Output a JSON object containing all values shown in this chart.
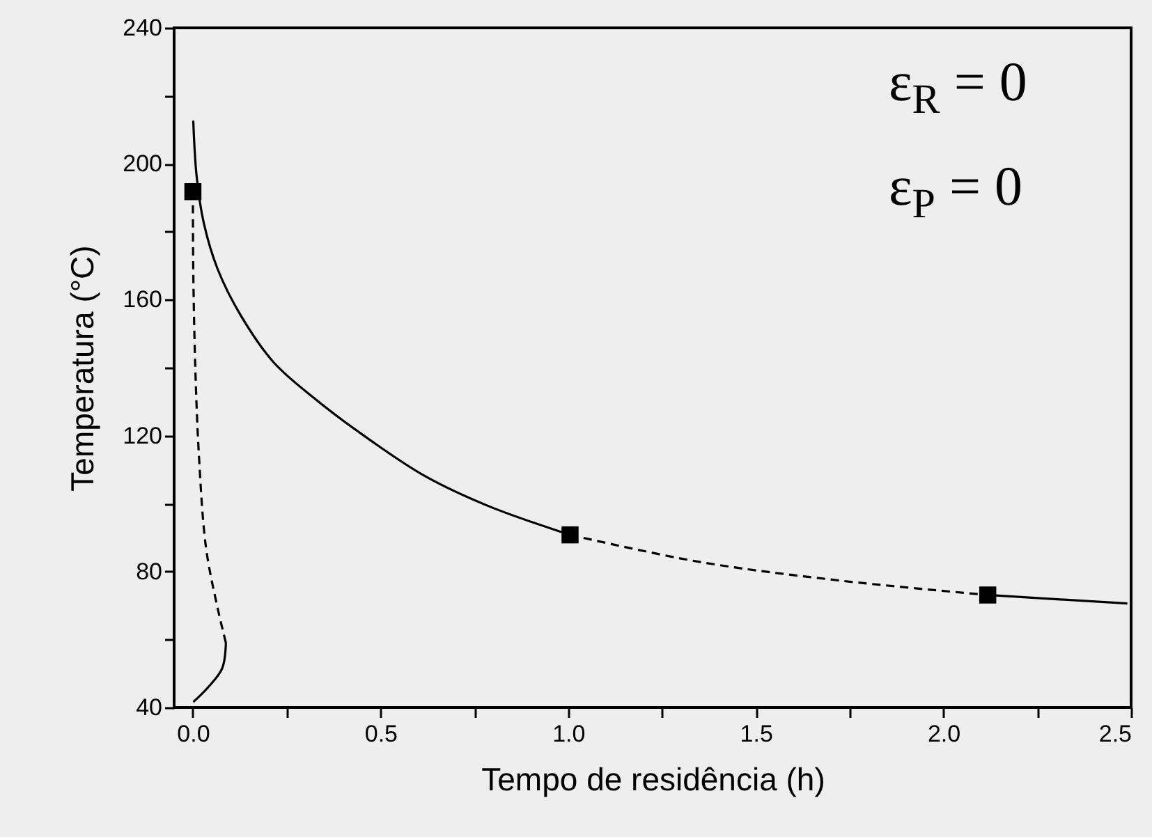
{
  "chart_data": {
    "type": "line",
    "xlabel": "Tempo de residência (h)",
    "ylabel": "Temperatura (°C)",
    "xlim": [
      -0.05,
      2.5
    ],
    "ylim": [
      40,
      240
    ],
    "xticks": [
      {
        "value": 0,
        "label": "0.0"
      },
      {
        "value": 0.25,
        "label": null
      },
      {
        "value": 0.5,
        "label": "0.5"
      },
      {
        "value": 0.75,
        "label": null
      },
      {
        "value": 1,
        "label": "1.0"
      },
      {
        "value": 1.25,
        "label": null
      },
      {
        "value": 1.5,
        "label": "1.5"
      },
      {
        "value": 1.75,
        "label": null
      },
      {
        "value": 2,
        "label": "2.0"
      },
      {
        "value": 2.25,
        "label": null
      },
      {
        "value": 2.5,
        "label": "2.5"
      }
    ],
    "yticks": [
      40,
      {
        "value": 60,
        "label": null
      },
      80,
      {
        "value": 100,
        "label": null
      },
      120,
      {
        "value": 140,
        "label": null
      },
      160,
      {
        "value": 180,
        "label": null
      },
      200,
      {
        "value": 220,
        "label": null
      },
      240
    ],
    "grid": false,
    "annotations": [
      "ε$_{R}$ = 0",
      "ε$_{P}$ = 0"
    ],
    "series": [
      {
        "line_style": "solid",
        "color": "#000000",
        "x": [
          0.001,
          0.01,
          0.029,
          0.066,
          0.128,
          0.215,
          0.327,
          0.476,
          0.62,
          0.787,
          1.005
        ],
        "values": [
          212.7,
          196.3,
          182.6,
          169,
          155.3,
          141.6,
          130.7,
          118.4,
          108,
          99.3,
          90.8
        ]
      },
      {
        "line_style": "dashed",
        "color": "#000000",
        "x": [
          1.005,
          1.347,
          1.72,
          2.118
        ],
        "values": [
          90.8,
          82.9,
          77.4,
          73.1
        ]
      },
      {
        "line_style": "solid",
        "color": "#000000",
        "x": [
          2.118,
          2.49
        ],
        "values": [
          73.1,
          70.6
        ]
      },
      {
        "line_style": "solid",
        "color": "#000000",
        "x": [
          0.001,
          0.041,
          0.078,
          0.088
        ],
        "values": [
          41.6,
          46,
          51.5,
          59
        ]
      },
      {
        "line_style": "dashed",
        "color": "#000000",
        "x": [
          0.088,
          0.066,
          0.035,
          0.016,
          0.006,
          0.001,
          0
        ],
        "values": [
          59,
          69.2,
          87,
          114.3,
          141.6,
          169,
          191.8
        ]
      },
      {
        "type": "scatter",
        "marker": "square",
        "color": "#000000",
        "x": [
          0,
          1.005,
          2.118
        ],
        "values": [
          191.8,
          90.8,
          73.1
        ]
      }
    ]
  }
}
